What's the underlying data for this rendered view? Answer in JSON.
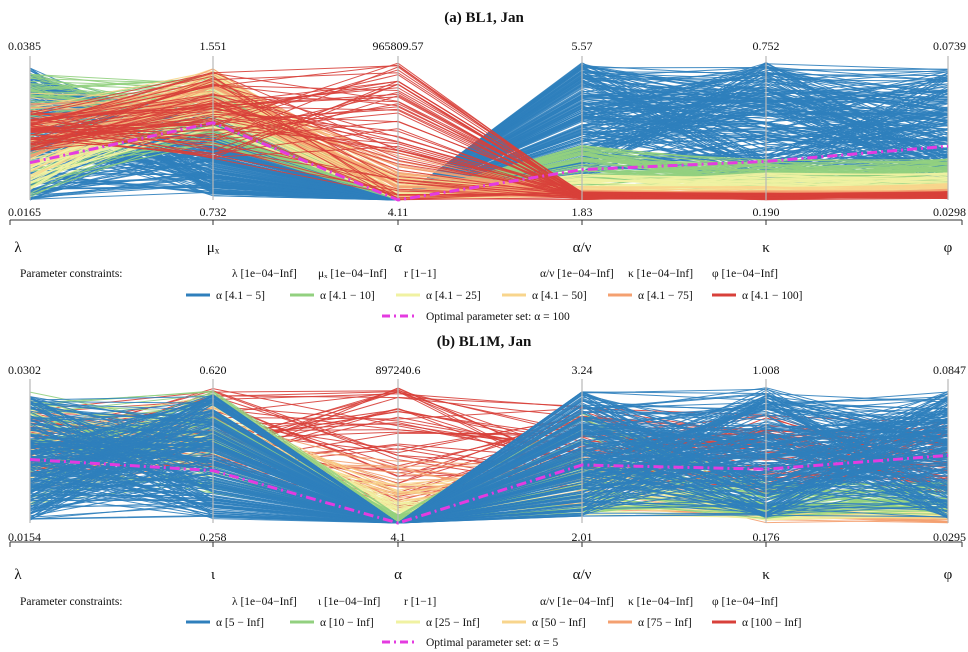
{
  "chart_data": [
    {
      "type": "parallel-coordinates",
      "title": "(a) BL1,  Jan",
      "axes": [
        {
          "label": "λ",
          "max": "0.0385",
          "min": "0.0165"
        },
        {
          "label": "μₓ",
          "max": "1.551",
          "min": "0.732"
        },
        {
          "label": "α",
          "max": "965809.57",
          "min": "4.11"
        },
        {
          "label": "α/ν",
          "max": "5.57",
          "min": "1.83"
        },
        {
          "label": "κ",
          "max": "0.752",
          "min": "0.190"
        },
        {
          "label": "φ",
          "max": "0.0739",
          "min": "0.0298"
        }
      ],
      "constraints_label": "Parameter constraints:",
      "constraints": [
        "λ [1e−04−Inf]",
        "μₓ [1e−04−Inf]",
        "r [1−1]",
        "α/ν [1e−04−Inf]",
        "κ [1e−04−Inf]",
        "φ [1e−04−Inf]"
      ],
      "series": [
        {
          "name": "α [4.1 − 5]",
          "color": "#2f7fbc"
        },
        {
          "name": "α [4.1 − 10]",
          "color": "#92d07f"
        },
        {
          "name": "α [4.1 − 25]",
          "color": "#f0f2a2"
        },
        {
          "name": "α [4.1 − 50]",
          "color": "#f8d58c"
        },
        {
          "name": "α [4.1 − 75]",
          "color": "#f4a070"
        },
        {
          "name": "α [4.1 − 100]",
          "color": "#d8403a"
        }
      ],
      "optimal": {
        "label": "Optimal parameter set: α = 100",
        "color": "#e43be0",
        "values": [
          0.27,
          0.56,
          0.0,
          0.22,
          0.28,
          0.39
        ]
      }
    },
    {
      "type": "parallel-coordinates",
      "title": "(b) BL1M,  Jan",
      "axes": [
        {
          "label": "λ",
          "max": "0.0302",
          "min": "0.0154"
        },
        {
          "label": "ι",
          "max": "0.620",
          "min": "0.258"
        },
        {
          "label": "α",
          "max": "897240.6",
          "min": "4.1"
        },
        {
          "label": "α/ν",
          "max": "3.24",
          "min": "2.01"
        },
        {
          "label": "κ",
          "max": "1.008",
          "min": "0.176"
        },
        {
          "label": "φ",
          "max": "0.0847",
          "min": "0.0295"
        }
      ],
      "constraints_label": "Parameter constraints:",
      "constraints": [
        "λ [1e−04−Inf]",
        "ι [1e−04−Inf]",
        "r [1−1]",
        "α/ν [1e−04−Inf]",
        "κ [1e−04−Inf]",
        "φ [1e−04−Inf]"
      ],
      "series": [
        {
          "name": "α [5 − Inf]",
          "color": "#2f7fbc"
        },
        {
          "name": "α [10 − Inf]",
          "color": "#92d07f"
        },
        {
          "name": "α [25 − Inf]",
          "color": "#f0f2a2"
        },
        {
          "name": "α [50 − Inf]",
          "color": "#f8d58c"
        },
        {
          "name": "α [75 − Inf]",
          "color": "#f4a070"
        },
        {
          "name": "α [100 − Inf]",
          "color": "#d8403a"
        }
      ],
      "optimal": {
        "label": "Optimal parameter set: α = 5",
        "color": "#e43be0",
        "values": [
          0.46,
          0.38,
          0.0,
          0.42,
          0.39,
          0.49
        ]
      }
    }
  ]
}
